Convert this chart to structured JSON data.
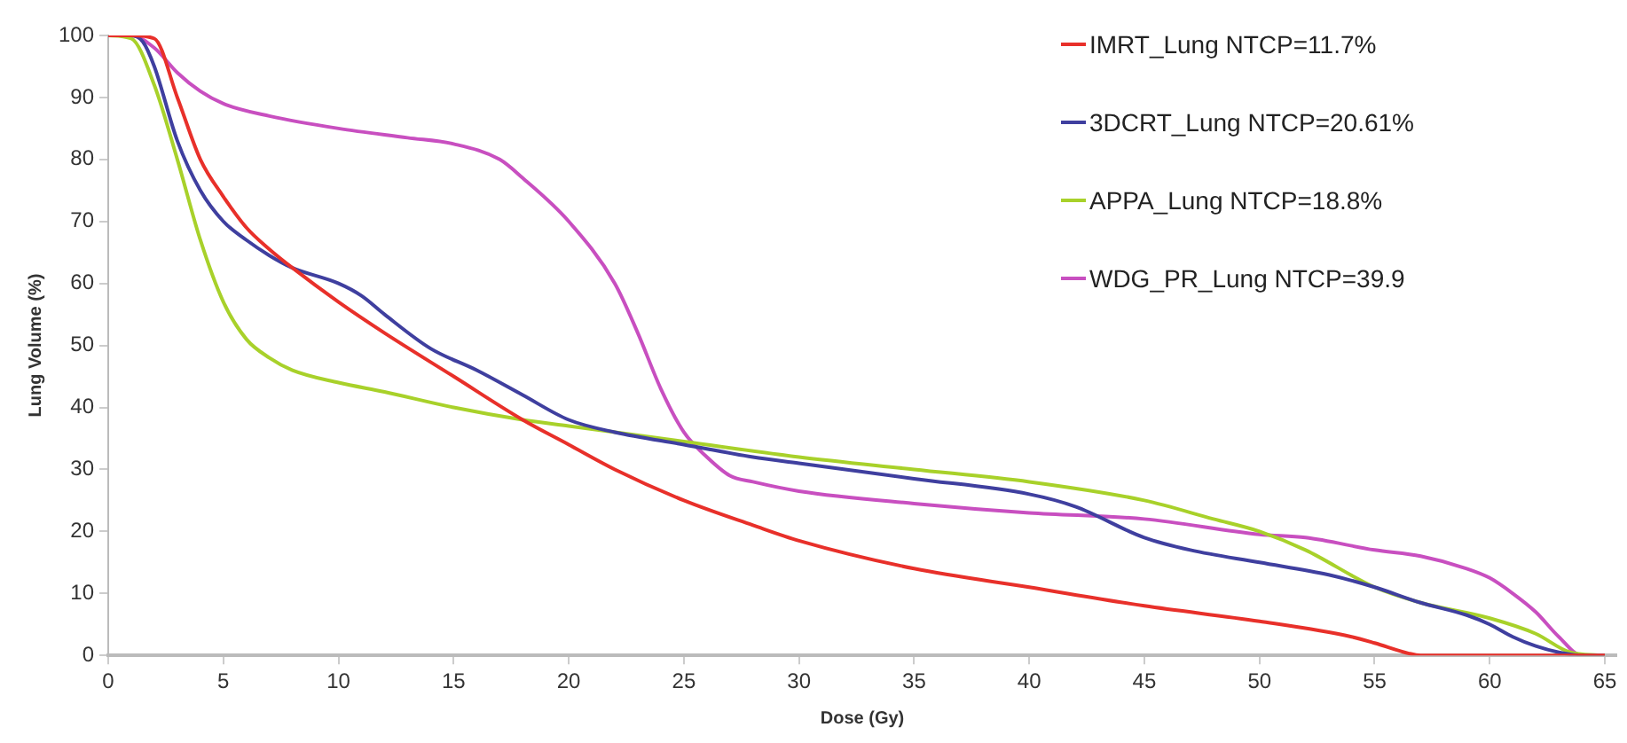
{
  "chart_data": {
    "type": "line",
    "xlabel": "Dose (Gy)",
    "ylabel": "Lung Volume (%)",
    "xlim": [
      0,
      65.5
    ],
    "xticks": [
      0,
      5,
      10,
      15,
      20,
      25,
      30,
      35,
      40,
      45,
      50,
      55,
      60,
      65
    ],
    "ylim": [
      0,
      100
    ],
    "yticks": [
      0,
      10,
      20,
      30,
      40,
      50,
      60,
      70,
      80,
      90,
      100
    ],
    "grid": false,
    "legend": "top right",
    "marker": "none",
    "line_style": "solid",
    "series": [
      {
        "name": "IMRT_Lung NTCP=11.7%",
        "color": "#e8302a",
        "x": [
          0,
          1,
          2,
          3,
          4,
          5,
          6,
          7,
          8,
          10,
          12,
          15,
          18,
          20,
          22,
          25,
          28,
          30,
          35,
          40,
          45,
          50,
          54,
          55,
          56.5,
          57,
          65
        ],
        "values": [
          100,
          100,
          99.5,
          90,
          80,
          74,
          69,
          65.5,
          62.5,
          57,
          52,
          45,
          38,
          34,
          30,
          25,
          21,
          18.5,
          14,
          11,
          8,
          5.5,
          3,
          2,
          0.3,
          0,
          0
        ]
      },
      {
        "name": "3DCRT_Lung NTCP=20.61%",
        "color": "#3f3f9f",
        "x": [
          0,
          1,
          1.5,
          2,
          3,
          4,
          5,
          6,
          7,
          8,
          10,
          11,
          12,
          14,
          16,
          18,
          20,
          22,
          25,
          28,
          30,
          35,
          40,
          42,
          45,
          47,
          50,
          53,
          55,
          57,
          59,
          60,
          61,
          62,
          63,
          64,
          65
        ],
        "values": [
          100,
          100,
          99,
          95,
          83,
          75,
          70,
          67,
          64.5,
          62.5,
          60,
          58,
          55,
          49.5,
          46,
          42,
          38,
          36,
          34,
          32,
          31,
          28.5,
          26,
          24,
          19,
          17,
          15,
          13,
          11,
          8.5,
          6.5,
          5,
          3,
          1.5,
          0.5,
          0,
          0
        ]
      },
      {
        "name": "APPA_Lung NTCP=18.8%",
        "color": "#a8d12a",
        "x": [
          0,
          1,
          2,
          3,
          4,
          5,
          6,
          7,
          8,
          10,
          12,
          15,
          18,
          20,
          25,
          30,
          35,
          40,
          45,
          48,
          50,
          52,
          55,
          57,
          60,
          62,
          63.5,
          65
        ],
        "values": [
          100,
          99.5,
          92,
          80,
          67,
          57,
          51,
          48,
          46,
          44,
          42.5,
          40,
          38,
          37,
          34.5,
          32,
          30,
          28,
          25,
          22,
          20,
          17,
          11,
          8.5,
          6,
          3.5,
          0.5,
          0
        ]
      },
      {
        "name": "WDG_PR_Lung NTCP=39.9",
        "color": "#c84fc0",
        "x": [
          0,
          1,
          2,
          3,
          4,
          5,
          7,
          10,
          13,
          15,
          17,
          18,
          20,
          22,
          23,
          24,
          25,
          26,
          27,
          28,
          30,
          35,
          40,
          45,
          50,
          52,
          55,
          57,
          59,
          60,
          61,
          62,
          63,
          64,
          65
        ],
        "values": [
          100,
          100,
          98,
          94,
          91,
          89,
          87,
          85,
          83.5,
          82.5,
          80,
          77,
          70,
          60,
          52,
          43,
          36,
          32,
          29,
          28,
          26.5,
          24.5,
          23,
          22,
          19.5,
          19,
          17,
          16,
          14,
          12.5,
          10,
          7,
          3,
          0,
          0
        ]
      }
    ]
  }
}
